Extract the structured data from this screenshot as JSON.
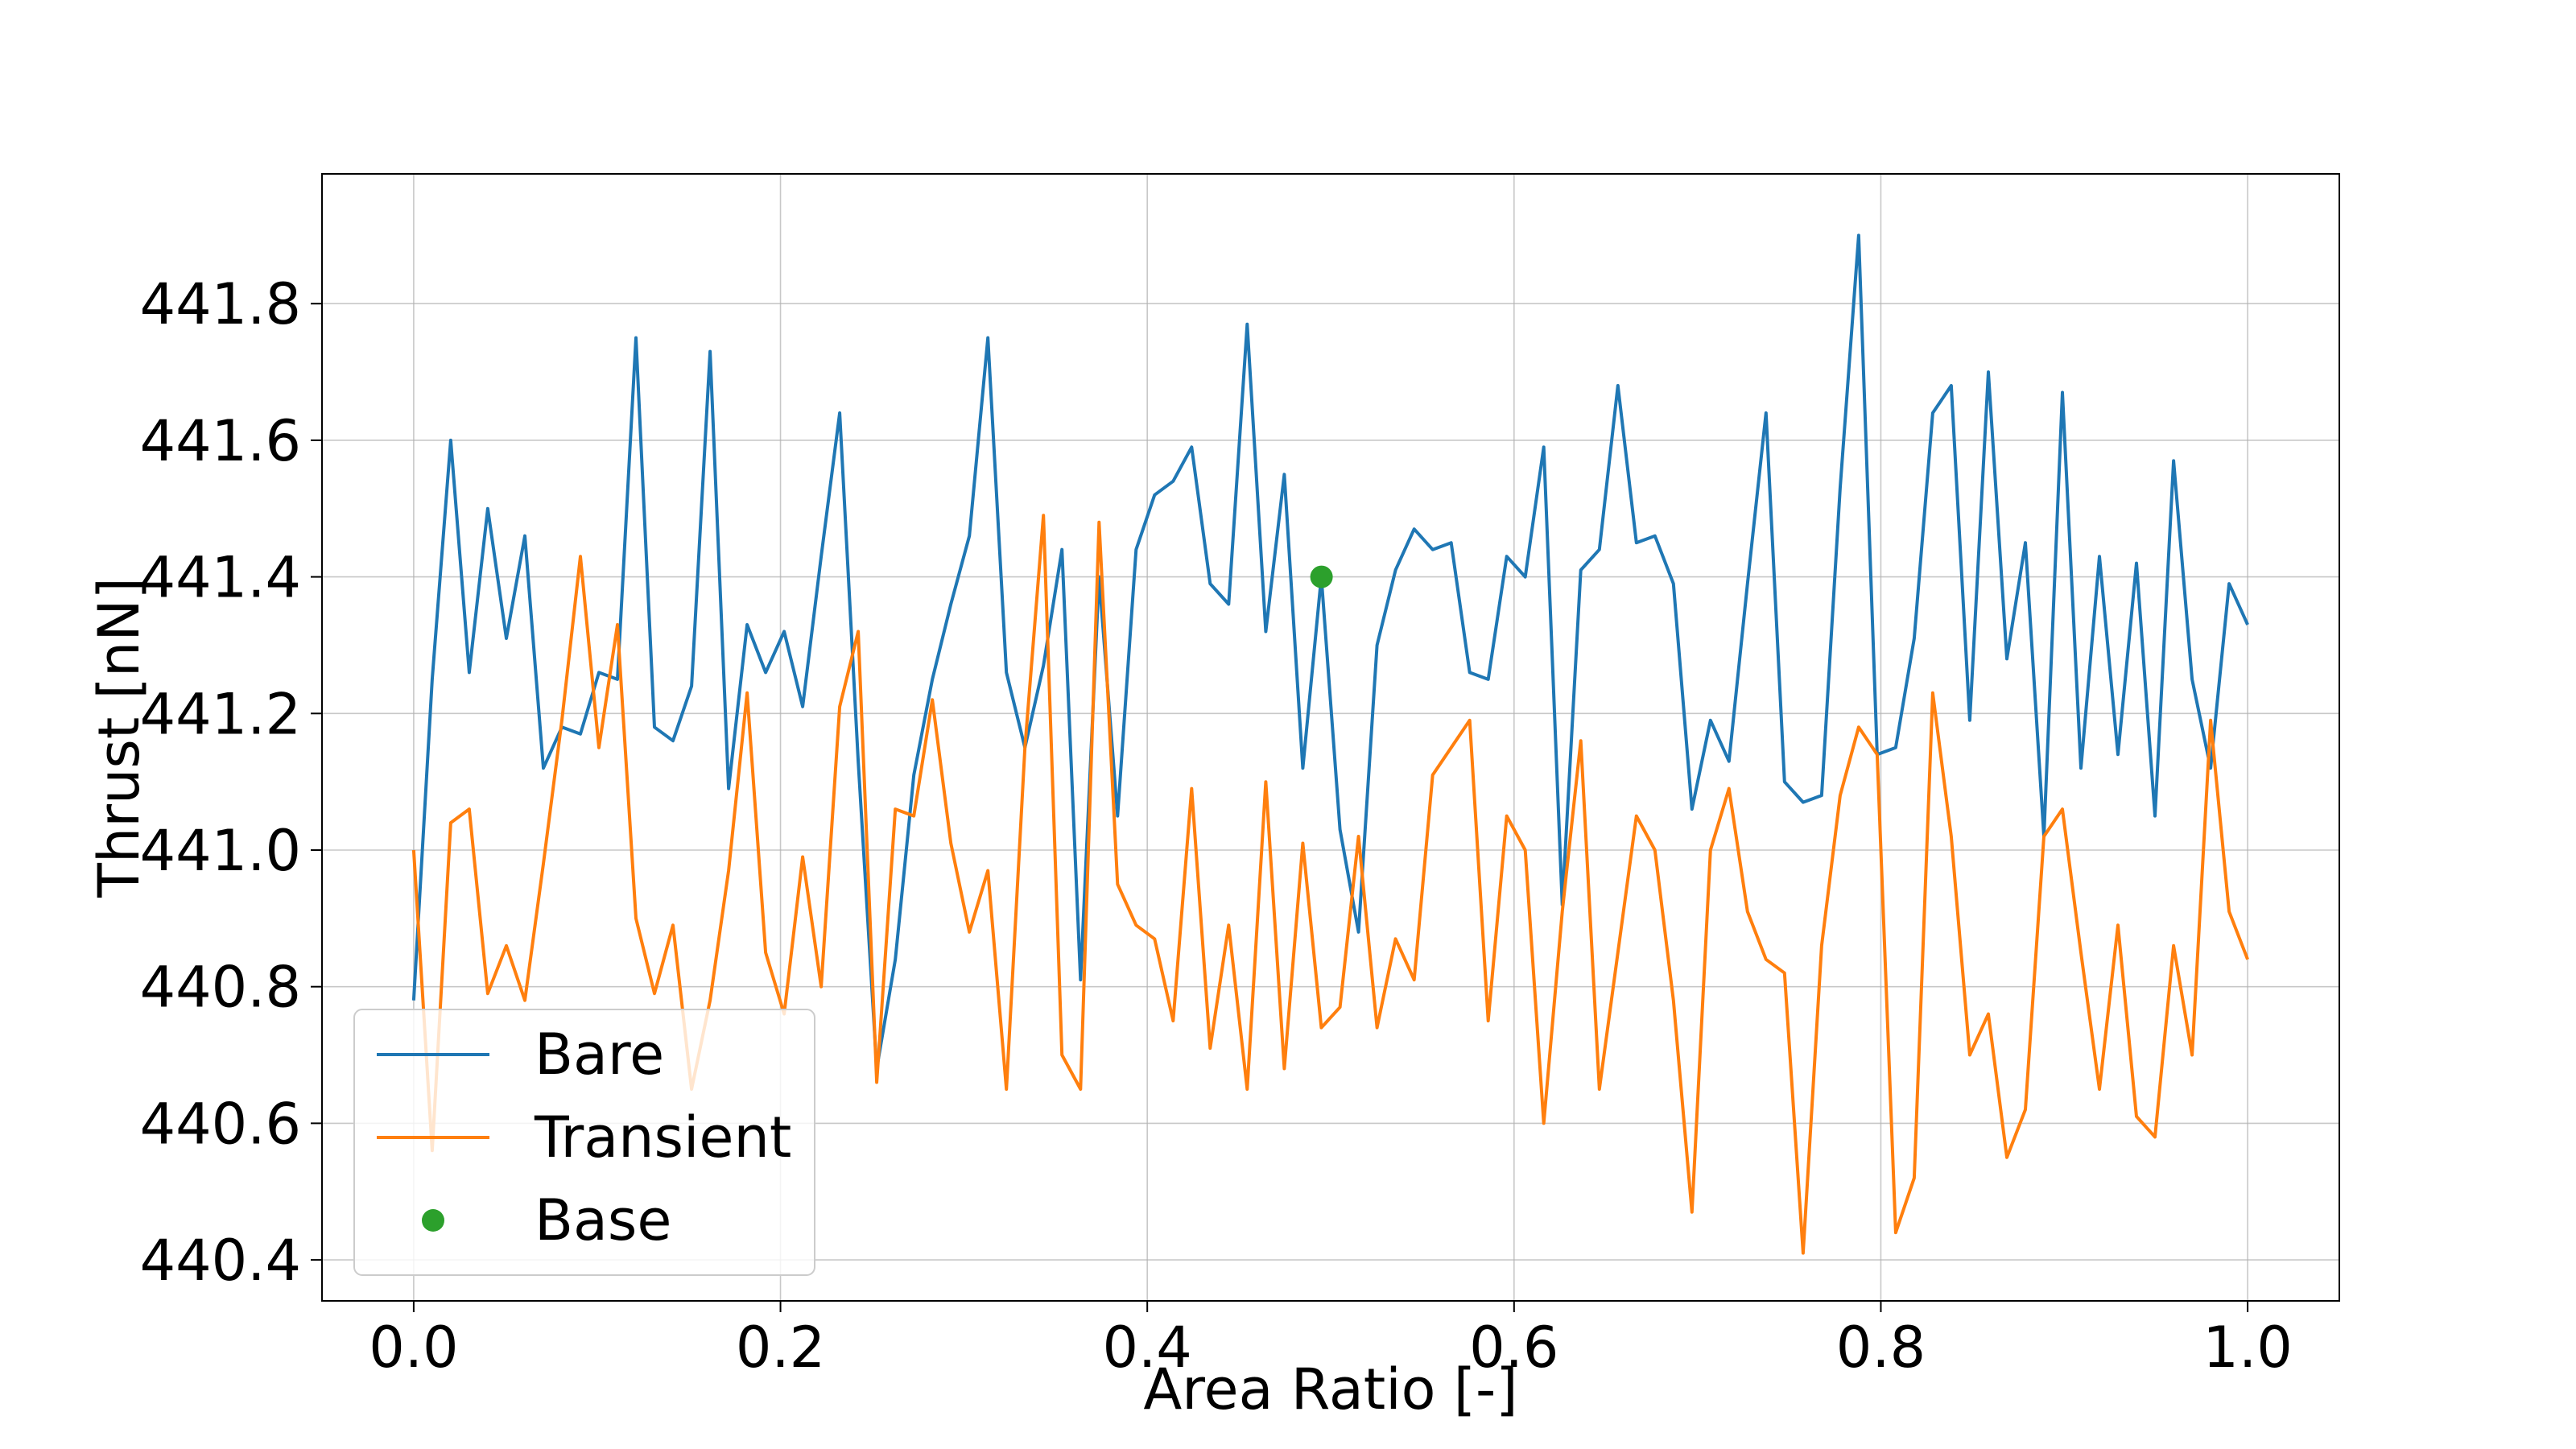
{
  "chart_data": {
    "type": "line",
    "xlabel": "Area Ratio [-]",
    "ylabel": "Thrust [nN]",
    "xlim": [
      -0.05,
      1.05
    ],
    "ylim": [
      440.34,
      441.99
    ],
    "xticks": [
      0.0,
      0.2,
      0.4,
      0.6,
      0.8,
      1.0
    ],
    "xtick_labels": [
      "0.0",
      "0.2",
      "0.4",
      "0.6",
      "0.8",
      "1.0"
    ],
    "yticks": [
      440.4,
      440.6,
      440.8,
      441.0,
      441.2,
      441.4,
      441.6,
      441.8
    ],
    "ytick_labels": [
      "440.4",
      "440.6",
      "440.8",
      "441.0",
      "441.2",
      "441.4",
      "441.6",
      "441.8"
    ],
    "grid": true,
    "legend_position": "lower-left",
    "series": [
      {
        "name": "Bare",
        "kind": "line",
        "color": "#1f77b4",
        "x": [
          0.0,
          0.0101,
          0.0202,
          0.0303,
          0.0404,
          0.0505,
          0.0606,
          0.0707,
          0.0808,
          0.0909,
          0.101,
          0.1111,
          0.1212,
          0.1313,
          0.1414,
          0.1515,
          0.1616,
          0.1717,
          0.1818,
          0.1919,
          0.202,
          0.2121,
          0.2222,
          0.2323,
          0.2424,
          0.2525,
          0.2626,
          0.2727,
          0.2828,
          0.2929,
          0.303,
          0.3131,
          0.3232,
          0.3333,
          0.3434,
          0.3535,
          0.3636,
          0.3737,
          0.3838,
          0.3939,
          0.404,
          0.4141,
          0.4242,
          0.4343,
          0.4444,
          0.4545,
          0.4646,
          0.4747,
          0.4848,
          0.4949,
          0.5051,
          0.5152,
          0.5253,
          0.5354,
          0.5455,
          0.5556,
          0.5657,
          0.5758,
          0.5859,
          0.596,
          0.6061,
          0.6162,
          0.6263,
          0.6364,
          0.6465,
          0.6566,
          0.6667,
          0.6768,
          0.6869,
          0.697,
          0.7071,
          0.7172,
          0.7273,
          0.7374,
          0.7475,
          0.7576,
          0.7677,
          0.7778,
          0.7879,
          0.798,
          0.8081,
          0.8182,
          0.8283,
          0.8384,
          0.8485,
          0.8586,
          0.8687,
          0.8788,
          0.8889,
          0.899,
          0.9091,
          0.9192,
          0.9293,
          0.9394,
          0.9495,
          0.9596,
          0.9697,
          0.9798,
          0.9899,
          1.0
        ],
        "y": [
          440.78,
          441.25,
          441.6,
          441.26,
          441.5,
          441.31,
          441.46,
          441.12,
          441.18,
          441.17,
          441.26,
          441.25,
          441.75,
          441.18,
          441.16,
          441.24,
          441.73,
          441.09,
          441.33,
          441.26,
          441.32,
          441.21,
          441.43,
          441.64,
          441.13,
          440.68,
          440.84,
          441.11,
          441.25,
          441.36,
          441.46,
          441.75,
          441.26,
          441.15,
          441.27,
          441.44,
          440.81,
          441.4,
          441.05,
          441.44,
          441.52,
          441.54,
          441.59,
          441.39,
          441.36,
          441.77,
          441.32,
          441.55,
          441.12,
          441.4,
          441.03,
          440.88,
          441.3,
          441.41,
          441.47,
          441.44,
          441.45,
          441.26,
          441.25,
          441.43,
          441.4,
          441.59,
          440.92,
          441.41,
          441.44,
          441.68,
          441.45,
          441.46,
          441.39,
          441.06,
          441.19,
          441.13,
          441.39,
          441.64,
          441.1,
          441.07,
          441.08,
          441.53,
          441.9,
          441.14,
          441.15,
          441.31,
          441.64,
          441.68,
          441.19,
          441.7,
          441.28,
          441.45,
          441.02,
          441.67,
          441.12,
          441.43,
          441.14,
          441.42,
          441.05,
          441.57,
          441.25,
          441.12,
          441.39,
          441.33
        ]
      },
      {
        "name": "Transient",
        "kind": "line",
        "color": "#ff7f0e",
        "x": [
          0.0,
          0.0101,
          0.0202,
          0.0303,
          0.0404,
          0.0505,
          0.0606,
          0.0707,
          0.0808,
          0.0909,
          0.101,
          0.1111,
          0.1212,
          0.1313,
          0.1414,
          0.1515,
          0.1616,
          0.1717,
          0.1818,
          0.1919,
          0.202,
          0.2121,
          0.2222,
          0.2323,
          0.2424,
          0.2525,
          0.2626,
          0.2727,
          0.2828,
          0.2929,
          0.303,
          0.3131,
          0.3232,
          0.3333,
          0.3434,
          0.3535,
          0.3636,
          0.3737,
          0.3838,
          0.3939,
          0.404,
          0.4141,
          0.4242,
          0.4343,
          0.4444,
          0.4545,
          0.4646,
          0.4747,
          0.4848,
          0.4949,
          0.5051,
          0.5152,
          0.5253,
          0.5354,
          0.5455,
          0.5556,
          0.5657,
          0.5758,
          0.5859,
          0.596,
          0.6061,
          0.6162,
          0.6263,
          0.6364,
          0.6465,
          0.6566,
          0.6667,
          0.6768,
          0.6869,
          0.697,
          0.7071,
          0.7172,
          0.7273,
          0.7374,
          0.7475,
          0.7576,
          0.7677,
          0.7778,
          0.7879,
          0.798,
          0.8081,
          0.8182,
          0.8283,
          0.8384,
          0.8485,
          0.8586,
          0.8687,
          0.8788,
          0.8889,
          0.899,
          0.9091,
          0.9192,
          0.9293,
          0.9394,
          0.9495,
          0.9596,
          0.9697,
          0.9798,
          0.9899,
          1.0
        ],
        "y": [
          441.0,
          440.56,
          441.04,
          441.06,
          440.79,
          440.86,
          440.78,
          440.98,
          441.19,
          441.43,
          441.15,
          441.33,
          440.9,
          440.79,
          440.89,
          440.65,
          440.78,
          440.97,
          441.23,
          440.85,
          440.76,
          440.99,
          440.8,
          441.21,
          441.32,
          440.66,
          441.06,
          441.05,
          441.22,
          441.01,
          440.88,
          440.97,
          440.65,
          441.15,
          441.49,
          440.7,
          440.65,
          441.48,
          440.95,
          440.89,
          440.87,
          440.75,
          441.09,
          440.71,
          440.89,
          440.65,
          441.1,
          440.68,
          441.01,
          440.74,
          440.77,
          441.02,
          440.74,
          440.87,
          440.81,
          441.11,
          441.15,
          441.19,
          440.75,
          441.05,
          441.0,
          440.6,
          440.91,
          441.16,
          440.65,
          440.85,
          441.05,
          441.0,
          440.78,
          440.47,
          441.0,
          441.09,
          440.91,
          440.84,
          440.82,
          440.41,
          440.86,
          441.08,
          441.18,
          441.14,
          440.44,
          440.52,
          441.23,
          441.02,
          440.7,
          440.76,
          440.55,
          440.62,
          441.02,
          441.06,
          440.85,
          440.65,
          440.89,
          440.61,
          440.58,
          440.86,
          440.7,
          441.19,
          440.91,
          440.84
        ]
      },
      {
        "name": "Base",
        "kind": "marker",
        "color": "#2ca02c",
        "x": [
          0.495
        ],
        "y": [
          441.4
        ]
      }
    ]
  }
}
